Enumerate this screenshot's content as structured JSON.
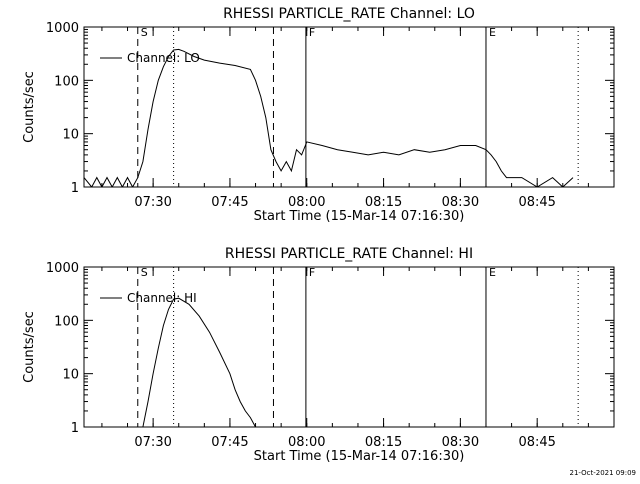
{
  "footer": {
    "timestamp": "21-Oct-2021 09:09"
  },
  "x_tick_labels": [
    "07:30",
    "07:45",
    "08:00",
    "08:15",
    "08:30",
    "08:45"
  ],
  "chart_data": [
    {
      "type": "line",
      "title": "RHESSI PARTICLE_RATE Channel: LO",
      "xlabel": "Start Time (15-Mar-14 07:16:30)",
      "ylabel": "Counts/sec",
      "y_scale": "log",
      "ylim": [
        1,
        1000
      ],
      "y_ticks": [
        "1",
        "10",
        "100",
        "1000"
      ],
      "xlim": [
        "07:16:30",
        "09:00:00"
      ],
      "legend": {
        "placement": "top-left",
        "label": "Channel: LO"
      },
      "markers": [
        {
          "label": "S",
          "time": "07:27:00",
          "style": "dashed"
        },
        {
          "label": "",
          "time": "07:34:00",
          "style": "dotted"
        },
        {
          "label": "",
          "time": "07:53:30",
          "style": "dashed"
        },
        {
          "label": "F",
          "time": "07:59:50",
          "style": "solid"
        },
        {
          "label": "E",
          "time": "08:35:00",
          "style": "solid"
        },
        {
          "label": "",
          "time": "08:53:00",
          "style": "dotted"
        }
      ],
      "series": [
        {
          "name": "Channel: LO",
          "x": [
            "07:16:30",
            "07:18:00",
            "07:19:00",
            "07:20:00",
            "07:21:00",
            "07:22:00",
            "07:23:00",
            "07:24:00",
            "07:25:00",
            "07:26:00",
            "07:27:00",
            "07:28:00",
            "07:29:00",
            "07:30:00",
            "07:31:00",
            "07:32:00",
            "07:33:00",
            "07:34:00",
            "07:35:00",
            "07:36:00",
            "07:38:00",
            "07:40:00",
            "07:43:00",
            "07:46:00",
            "07:49:00",
            "07:50:00",
            "07:51:00",
            "07:52:00",
            "07:53:00",
            "07:54:00",
            "07:55:00",
            "07:56:00",
            "07:57:00",
            "07:58:00",
            "07:59:00",
            "08:00:00",
            "08:03:00",
            "08:06:00",
            "08:09:00",
            "08:12:00",
            "08:15:00",
            "08:18:00",
            "08:21:00",
            "08:24:00",
            "08:27:00",
            "08:30:00",
            "08:33:00",
            "08:35:00",
            "08:36:00",
            "08:37:00",
            "08:38:00",
            "08:39:00",
            "08:40:00",
            "08:42:00",
            "08:45:00",
            "08:48:00",
            "08:50:00",
            "08:52:00"
          ],
          "values": [
            1.5,
            1,
            1.5,
            1,
            1.5,
            1,
            1.5,
            1,
            1.5,
            1,
            1.5,
            3,
            12,
            40,
            100,
            180,
            280,
            370,
            380,
            350,
            280,
            240,
            210,
            190,
            160,
            100,
            50,
            20,
            5,
            3,
            2,
            3,
            2,
            5,
            4,
            7,
            6,
            5,
            4.5,
            4,
            4.5,
            4,
            5,
            4.5,
            5,
            6,
            6,
            5,
            4,
            3,
            2,
            1.5,
            1.5,
            1.5,
            1,
            1.5,
            1,
            1.5
          ]
        }
      ]
    },
    {
      "type": "line",
      "title": "RHESSI PARTICLE_RATE Channel: HI",
      "xlabel": "Start Time (15-Mar-14 07:16:30)",
      "ylabel": "Counts/sec",
      "y_scale": "log",
      "ylim": [
        1,
        1000
      ],
      "y_ticks": [
        "1",
        "10",
        "100",
        "1000"
      ],
      "xlim": [
        "07:16:30",
        "09:00:00"
      ],
      "legend": {
        "placement": "top-left",
        "label": "Channel: HI"
      },
      "markers": [
        {
          "label": "S",
          "time": "07:27:00",
          "style": "dashed"
        },
        {
          "label": "",
          "time": "07:34:00",
          "style": "dotted"
        },
        {
          "label": "",
          "time": "07:53:30",
          "style": "dashed"
        },
        {
          "label": "F",
          "time": "07:59:50",
          "style": "solid"
        },
        {
          "label": "E",
          "time": "08:35:00",
          "style": "solid"
        },
        {
          "label": "",
          "time": "08:53:00",
          "style": "dotted"
        }
      ],
      "series": [
        {
          "name": "Channel: HI",
          "x": [
            "07:28:00",
            "07:29:00",
            "07:30:00",
            "07:31:00",
            "07:32:00",
            "07:33:00",
            "07:34:00",
            "07:35:00",
            "07:37:00",
            "07:39:00",
            "07:41:00",
            "07:43:00",
            "07:45:00",
            "07:46:00",
            "07:47:00",
            "07:48:00",
            "07:49:00",
            "07:50:00"
          ],
          "values": [
            1,
            3,
            10,
            30,
            80,
            160,
            250,
            260,
            200,
            120,
            60,
            25,
            10,
            5,
            3,
            2,
            1.5,
            1
          ]
        }
      ]
    }
  ]
}
